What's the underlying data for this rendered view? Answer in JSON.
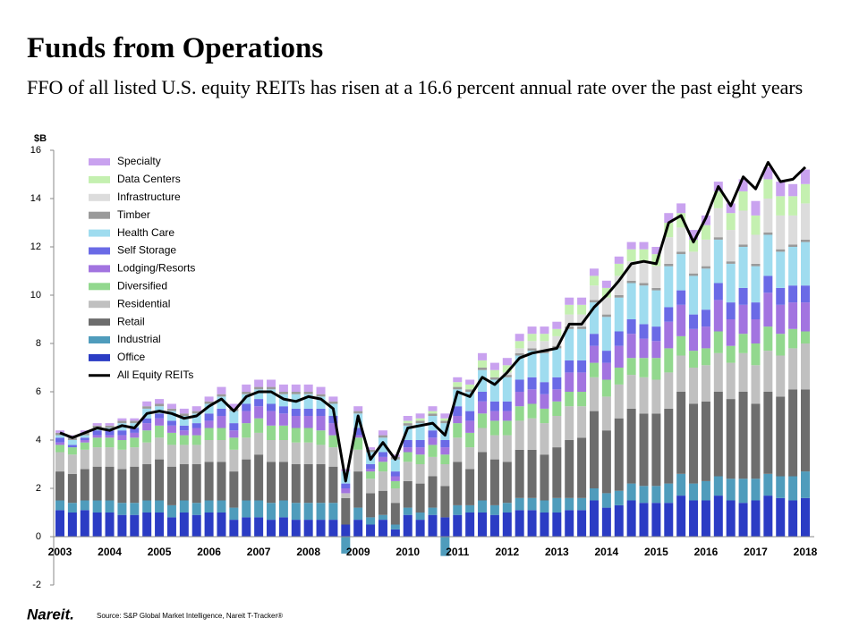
{
  "chart_data": {
    "type": "bar",
    "title": "Funds from Operations",
    "subtitle": "FFO of all listed U.S. equity REITs has risen at a 16.6 percent annual rate over the past eight years",
    "y_unit": "$B",
    "source": "Source: S&P Global Market Intelligence, Nareit T-Tracker®",
    "logo": "Nareit.",
    "stacked": true,
    "ylim": [
      -2,
      16
    ],
    "yticks": [
      -2,
      0,
      2,
      4,
      6,
      8,
      10,
      12,
      14,
      16
    ],
    "categories": [
      "2003",
      null,
      null,
      null,
      "2004",
      null,
      null,
      null,
      "2005",
      null,
      null,
      null,
      "2006",
      null,
      null,
      null,
      "2007",
      null,
      null,
      null,
      "2008",
      null,
      null,
      null,
      "2009",
      null,
      null,
      null,
      "2010",
      null,
      null,
      null,
      "2011",
      null,
      null,
      null,
      "2012",
      null,
      null,
      null,
      "2013",
      null,
      null,
      null,
      "2014",
      null,
      null,
      null,
      "2015",
      null,
      null,
      null,
      "2016",
      null,
      null,
      null,
      "2017",
      null,
      null,
      null,
      "2018"
    ],
    "series": [
      {
        "name": "Office",
        "color": "#2b3cc4",
        "values": [
          1.1,
          1.0,
          1.1,
          1.0,
          1.0,
          0.9,
          0.9,
          1.0,
          1.0,
          0.8,
          1.0,
          0.9,
          1.0,
          1.0,
          0.7,
          0.8,
          0.8,
          0.7,
          0.8,
          0.7,
          0.7,
          0.7,
          0.7,
          0.5,
          0.7,
          0.5,
          0.7,
          0.3,
          0.9,
          0.7,
          0.9,
          0.8,
          0.9,
          1.0,
          1.0,
          0.9,
          1.0,
          1.1,
          1.1,
          1.0,
          1.0,
          1.1,
          1.1,
          1.5,
          1.2,
          1.3,
          1.5,
          1.4,
          1.4,
          1.4,
          1.7,
          1.5,
          1.5,
          1.7,
          1.5,
          1.4,
          1.5,
          1.7,
          1.6,
          1.5,
          1.6
        ]
      },
      {
        "name": "Industrial",
        "color": "#4f9cbc",
        "values": [
          0.4,
          0.4,
          0.4,
          0.5,
          0.5,
          0.5,
          0.5,
          0.5,
          0.5,
          0.5,
          0.5,
          0.5,
          0.5,
          0.5,
          0.5,
          0.7,
          0.7,
          0.7,
          0.7,
          0.7,
          0.7,
          0.7,
          0.7,
          -0.7,
          0.5,
          0.3,
          0.2,
          0.2,
          0.3,
          0.3,
          0.3,
          -0.8,
          0.4,
          0.3,
          0.5,
          0.4,
          0.4,
          0.5,
          0.5,
          0.5,
          0.6,
          0.5,
          0.5,
          0.5,
          0.6,
          0.6,
          0.7,
          0.7,
          0.7,
          0.8,
          0.9,
          0.7,
          0.8,
          0.8,
          0.9,
          1.0,
          0.9,
          0.9,
          0.9,
          1.0,
          1.1
        ]
      },
      {
        "name": "Retail",
        "color": "#6d6d6d",
        "values": [
          1.2,
          1.2,
          1.3,
          1.4,
          1.4,
          1.4,
          1.5,
          1.5,
          1.7,
          1.6,
          1.5,
          1.6,
          1.6,
          1.6,
          1.5,
          1.7,
          1.9,
          1.7,
          1.6,
          1.6,
          1.6,
          1.6,
          1.5,
          1.1,
          1.5,
          1.0,
          1.0,
          0.9,
          1.1,
          1.2,
          1.3,
          1.3,
          1.8,
          1.5,
          2.0,
          1.9,
          1.7,
          2.0,
          2.0,
          1.9,
          2.1,
          2.4,
          2.5,
          3.2,
          2.6,
          3.0,
          3.1,
          3.0,
          3.0,
          3.1,
          3.4,
          3.3,
          3.3,
          3.5,
          3.3,
          3.6,
          3.1,
          3.4,
          3.3,
          3.6,
          3.4
        ]
      },
      {
        "name": "Residential",
        "color": "#c0c0c0",
        "values": [
          0.8,
          0.8,
          0.8,
          0.8,
          0.8,
          0.8,
          0.8,
          0.9,
          0.9,
          0.9,
          0.8,
          0.8,
          0.9,
          0.9,
          0.9,
          0.9,
          0.9,
          0.9,
          0.9,
          0.9,
          0.9,
          0.8,
          0.8,
          0.2,
          0.9,
          0.6,
          0.8,
          0.6,
          0.8,
          0.8,
          0.8,
          0.9,
          1.0,
          0.9,
          1.0,
          1.0,
          1.1,
          1.2,
          1.3,
          1.3,
          1.3,
          1.4,
          1.3,
          1.4,
          1.4,
          1.4,
          1.4,
          1.5,
          1.4,
          1.5,
          1.5,
          1.5,
          1.5,
          1.6,
          1.5,
          1.6,
          1.6,
          1.7,
          1.7,
          1.7,
          1.9
        ]
      },
      {
        "name": "Diversified",
        "color": "#92d88e",
        "values": [
          0.3,
          0.3,
          0.3,
          0.4,
          0.4,
          0.4,
          0.4,
          0.5,
          0.5,
          0.5,
          0.4,
          0.4,
          0.5,
          0.5,
          0.5,
          0.6,
          0.6,
          0.6,
          0.6,
          0.6,
          0.6,
          0.6,
          0.5,
          0.0,
          0.5,
          0.3,
          0.4,
          0.3,
          0.4,
          0.4,
          0.5,
          0.4,
          0.6,
          0.6,
          0.6,
          0.6,
          0.6,
          0.6,
          0.6,
          0.6,
          0.6,
          0.6,
          0.6,
          0.6,
          0.7,
          0.7,
          0.7,
          0.8,
          0.9,
          1.0,
          0.8,
          0.7,
          0.7,
          0.9,
          0.7,
          0.8,
          0.9,
          1.0,
          0.9,
          0.8,
          0.5
        ]
      },
      {
        "name": "Lodging/Resorts",
        "color": "#a274e0",
        "values": [
          0.1,
          0.0,
          0.1,
          0.1,
          0.1,
          0.2,
          0.2,
          0.3,
          0.3,
          0.3,
          0.2,
          0.3,
          0.3,
          0.5,
          0.3,
          0.5,
          0.5,
          0.6,
          0.5,
          0.5,
          0.5,
          0.6,
          0.5,
          0.2,
          0.1,
          0.1,
          0.2,
          0.2,
          0.2,
          0.3,
          0.3,
          0.3,
          0.3,
          0.5,
          0.5,
          0.4,
          0.4,
          0.6,
          0.6,
          0.6,
          0.5,
          0.8,
          0.8,
          0.7,
          0.7,
          0.9,
          1.0,
          0.8,
          0.7,
          1.1,
          1.3,
          0.9,
          0.9,
          1.3,
          1.1,
          1.2,
          1.0,
          1.4,
          1.2,
          1.1,
          1.2
        ]
      },
      {
        "name": "Self Storage",
        "color": "#6a6ae6",
        "values": [
          0.2,
          0.1,
          0.1,
          0.2,
          0.2,
          0.2,
          0.2,
          0.2,
          0.2,
          0.2,
          0.2,
          0.2,
          0.3,
          0.3,
          0.3,
          0.3,
          0.3,
          0.3,
          0.3,
          0.3,
          0.3,
          0.3,
          0.3,
          0.2,
          0.3,
          0.2,
          0.2,
          0.2,
          0.3,
          0.3,
          0.3,
          0.3,
          0.4,
          0.4,
          0.4,
          0.4,
          0.4,
          0.5,
          0.5,
          0.5,
          0.5,
          0.5,
          0.5,
          0.5,
          0.5,
          0.6,
          0.6,
          0.6,
          0.6,
          0.6,
          0.6,
          0.6,
          0.7,
          0.7,
          0.7,
          0.7,
          0.7,
          0.7,
          0.7,
          0.7,
          0.7
        ]
      },
      {
        "name": "Health Care",
        "color": "#9fdcef",
        "values": [
          0.1,
          0.2,
          0.1,
          0.1,
          0.1,
          0.3,
          0.2,
          0.4,
          0.3,
          0.4,
          0.4,
          0.4,
          0.4,
          0.5,
          0.5,
          0.4,
          0.4,
          0.6,
          0.5,
          0.6,
          0.6,
          0.5,
          0.5,
          0.5,
          0.6,
          0.5,
          0.6,
          0.5,
          0.6,
          0.7,
          0.6,
          0.7,
          0.7,
          0.8,
          0.9,
          0.9,
          1.0,
          1.0,
          1.1,
          1.2,
          1.2,
          1.3,
          1.3,
          1.3,
          1.4,
          1.4,
          1.5,
          1.6,
          1.5,
          1.7,
          1.5,
          1.6,
          1.7,
          1.8,
          1.6,
          1.7,
          1.5,
          1.7,
          1.5,
          1.6,
          1.8
        ]
      },
      {
        "name": "Timber",
        "color": "#9a9a9a",
        "values": [
          0.1,
          0.1,
          0.1,
          0.1,
          0.1,
          0.1,
          0.1,
          0.1,
          0.1,
          0.1,
          0.1,
          0.1,
          0.1,
          0.1,
          0.1,
          0.1,
          0.1,
          0.1,
          0.1,
          0.1,
          0.1,
          0.1,
          0.1,
          0.0,
          0.1,
          0.1,
          0.1,
          0.1,
          0.1,
          0.1,
          0.1,
          0.1,
          0.1,
          0.1,
          0.1,
          0.1,
          0.1,
          0.1,
          0.1,
          0.1,
          0.1,
          0.1,
          0.1,
          0.1,
          0.1,
          0.1,
          0.1,
          0.1,
          0.1,
          0.1,
          0.1,
          0.1,
          0.1,
          0.1,
          0.1,
          0.1,
          0.1,
          0.1,
          0.1,
          0.1,
          0.1
        ]
      },
      {
        "name": "Infrastructure",
        "color": "#dcdcdc",
        "values": [
          0,
          0,
          0,
          0,
          0,
          0,
          0,
          0,
          0,
          0,
          0,
          0,
          0,
          0,
          0,
          0,
          0,
          0,
          0,
          0,
          0,
          0,
          0,
          0,
          0,
          0,
          0,
          0,
          0,
          0,
          0,
          0,
          0,
          0,
          0,
          0,
          0.1,
          0.2,
          0.3,
          0.4,
          0.4,
          0.5,
          0.5,
          0.6,
          0.7,
          0.8,
          0.8,
          0.9,
          0.9,
          1.1,
          1.0,
          0.9,
          1.1,
          1.2,
          1.3,
          1.4,
          1.2,
          1.4,
          1.4,
          1.2,
          1.5
        ]
      },
      {
        "name": "Data Centers",
        "color": "#c4f0b0",
        "values": [
          0,
          0,
          0,
          0,
          0,
          0,
          0,
          0,
          0,
          0,
          0,
          0,
          0,
          0,
          0,
          0,
          0,
          0,
          0,
          0,
          0,
          0,
          0,
          0,
          0,
          0,
          0,
          0,
          0.1,
          0.1,
          0.1,
          0.1,
          0.2,
          0.2,
          0.3,
          0.3,
          0.3,
          0.3,
          0.3,
          0.3,
          0.3,
          0.4,
          0.4,
          0.4,
          0.4,
          0.5,
          0.5,
          0.5,
          0.5,
          0.6,
          0.6,
          0.5,
          0.6,
          0.7,
          0.7,
          0.8,
          0.8,
          0.8,
          0.8,
          0.8,
          0.8
        ]
      },
      {
        "name": "Specialty",
        "color": "#c9a2ef",
        "values": [
          0.1,
          0.1,
          0.1,
          0.1,
          0.1,
          0.1,
          0.1,
          0.2,
          0.2,
          0.2,
          0.2,
          0.2,
          0.2,
          0.3,
          0.2,
          0.3,
          0.3,
          0.3,
          0.3,
          0.3,
          0.3,
          0.3,
          0.2,
          0.1,
          0.2,
          0.1,
          0.2,
          0.1,
          0.2,
          0.2,
          0.2,
          0.2,
          0.2,
          0.2,
          0.3,
          0.3,
          0.3,
          0.3,
          0.3,
          0.3,
          0.3,
          0.3,
          0.3,
          0.3,
          0.3,
          0.3,
          0.3,
          0.3,
          0.3,
          0.4,
          0.4,
          0.4,
          0.4,
          0.4,
          0.4,
          0.5,
          0.6,
          0.5,
          0.6,
          0.5,
          0.6
        ]
      },
      {
        "name": "All Equity REITs",
        "color": "#000000",
        "type": "line",
        "values": [
          4.3,
          4.1,
          4.3,
          4.5,
          4.4,
          4.6,
          4.5,
          5.1,
          5.2,
          5.1,
          4.9,
          5.0,
          5.4,
          5.7,
          5.2,
          5.8,
          6.0,
          6.0,
          5.7,
          5.6,
          5.8,
          5.7,
          5.3,
          2.3,
          5.0,
          3.2,
          3.9,
          3.2,
          4.5,
          4.6,
          4.7,
          4.2,
          6.0,
          5.8,
          6.6,
          6.3,
          6.8,
          7.4,
          7.6,
          7.7,
          7.8,
          8.8,
          8.8,
          9.5,
          10.0,
          10.6,
          11.3,
          11.4,
          11.3,
          13.0,
          13.3,
          12.2,
          13.2,
          14.5,
          13.7,
          14.9,
          14.4,
          15.5,
          14.7,
          14.8,
          15.3
        ]
      }
    ]
  }
}
